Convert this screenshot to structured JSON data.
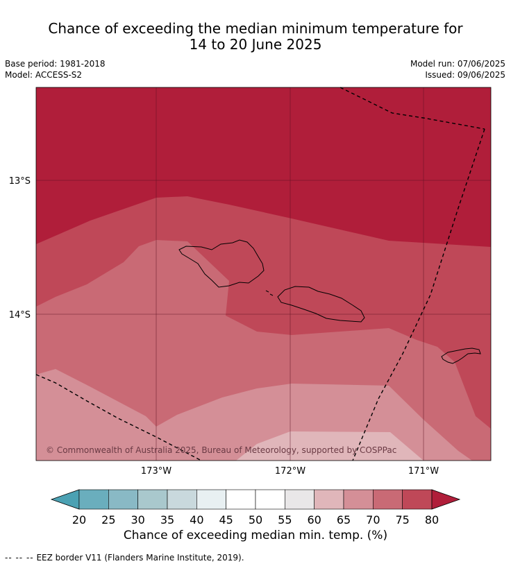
{
  "title_line1": "Chance of exceeding the median minimum temperature for",
  "title_line2": "14 to 20 June 2025",
  "meta": {
    "base_period": "Base period: 1981-2018",
    "model": "Model: ACCESS-S2",
    "model_run": "Model run: 07/06/2025",
    "issued": "Issued: 09/06/2025"
  },
  "map": {
    "lat_labels": [
      "13°S",
      "14°S"
    ],
    "lon_labels": [
      "173°W",
      "172°W",
      "171°W"
    ],
    "copyright": "© Commonwealth of Australia 2025, Bureau of Meteorology, supported by COSPPac"
  },
  "colorbar": {
    "ticks": [
      "20",
      "25",
      "30",
      "35",
      "40",
      "45",
      "50",
      "55",
      "60",
      "65",
      "70",
      "75",
      "80"
    ],
    "colors": [
      "#4ba1b3",
      "#6aaebd",
      "#89b9c5",
      "#a9c8cd",
      "#c9d9dd",
      "#e8f0f2",
      "#ffffff",
      "#ffffff",
      "#e9e7e8",
      "#e0b6ba",
      "#d48f97",
      "#c96a75",
      "#bf4858",
      "#b01e3a"
    ],
    "label": "Chance of exceeding median min. temp. (%)"
  },
  "eez_note": {
    "marker": "-- -- --",
    "text": "EEZ border V11 (Flanders Marine Institute, 2019)."
  }
}
